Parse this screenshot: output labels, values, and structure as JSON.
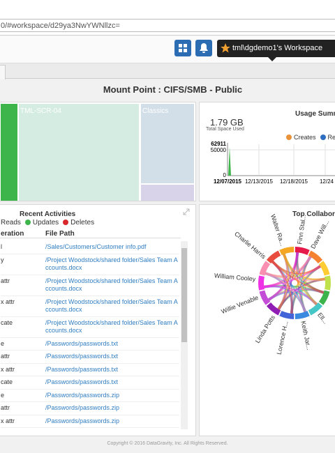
{
  "browser": {
    "url": "0/#workspace/d29ya3NwYWNllzc="
  },
  "header": {
    "workspace": "tml\\dgdemo1's Workspace"
  },
  "title": "Mount Point : CIFS/SMB - Public",
  "treemap": {
    "labels": [
      "TML-SCR-04",
      "Classics"
    ]
  },
  "usage": {
    "title": "Usage Summa",
    "total": "1.79 GB",
    "total_label": "Total Space Used",
    "legend": [
      "Creates",
      "Rea"
    ],
    "y_labels": [
      "62911",
      "50000",
      "0"
    ],
    "x_labels": [
      "12/07/2015",
      "12/13/2015",
      "12/18/2015",
      "12/24"
    ]
  },
  "activities": {
    "title": "Recent Activities",
    "legend": [
      "Reads",
      "Updates",
      "Deletes"
    ],
    "columns": [
      "eration",
      "File Path"
    ],
    "rows": [
      [
        "l",
        "/Sales/Customers/Customer info.pdf"
      ],
      [
        "y",
        "/Project Woodstock/shared folder/Sales Team Accounts.docx"
      ],
      [
        "attr",
        "/Project Woodstock/shared folder/Sales Team Accounts.docx"
      ],
      [
        "x attr",
        "/Project Woodstock/shared folder/Sales Team Accounts.docx"
      ],
      [
        "cate",
        "/Project Woodstock/shared folder/Sales Team Accounts.docx"
      ],
      [
        "e",
        "/Passwords/passwords.txt"
      ],
      [
        "attr",
        "/Passwords/passwords.txt"
      ],
      [
        "x attr",
        "/Passwords/passwords.txt"
      ],
      [
        "cate",
        "/Passwords/passwords.txt"
      ],
      [
        "e",
        "/Passwords/passwords.zip"
      ],
      [
        "attr",
        "/Passwords/passwords.zip"
      ],
      [
        "x attr",
        "/Passwords/passwords.zip"
      ]
    ]
  },
  "collaborators": {
    "title": "Top Collaborato",
    "names": [
      "Walter Ra...",
      "Finn Stal...",
      "Dave Will...",
      "Charlie Harris",
      "William Cooley",
      "Willie Venable",
      "Linda Potts",
      "Lorence H...",
      "Keith Jar...",
      "Ell..."
    ]
  },
  "footer": "Copyright © 2016 DataGravity, Inc. All Rights Reserved."
}
